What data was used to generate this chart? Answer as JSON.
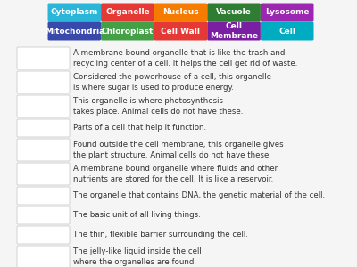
{
  "background_color": "#f5f5f5",
  "header_buttons": [
    {
      "label": "Cytoplasm",
      "color": "#29b6d8"
    },
    {
      "label": "Organelle",
      "color": "#e53935"
    },
    {
      "label": "Nucleus",
      "color": "#f57c00"
    },
    {
      "label": "Vacuole",
      "color": "#2e7d32"
    },
    {
      "label": "Lysosome",
      "color": "#9c27b0"
    }
  ],
  "header_buttons2": [
    {
      "label": "Mitochondria",
      "color": "#3949ab"
    },
    {
      "label": "Chloroplast",
      "color": "#43a047"
    },
    {
      "label": "Cell Wall",
      "color": "#e53935"
    },
    {
      "label": "Cell\nMembrane",
      "color": "#7b1fa2"
    },
    {
      "label": "Cell",
      "color": "#00acc1"
    }
  ],
  "clues": [
    "A membrane bound organelle that is like the trash and\nrecycling center of a cell. It helps the cell get rid of waste.",
    "Considered the powerhouse of a cell, this organelle\nis where sugar is used to produce energy.",
    "This organelle is where photosynthesis\ntakes place. Animal cells do not have these.",
    "Parts of a cell that help it function.",
    "Found outside the cell membrane, this organelle gives\nthe plant structure. Animal cells do not have these.",
    "A membrane bound organelle where fluids and other\nnutrients are stored for the cell. It is like a reservoir.",
    "The organelle that contains DNA, the genetic material of the cell.",
    "The basic unit of all living things.",
    "The thin, flexible barrier surrounding the cell.",
    "The jelly-like liquid inside the cell\nwhere the organelles are found."
  ],
  "line_counts": [
    2,
    2,
    2,
    1,
    2,
    2,
    1,
    1,
    1,
    2
  ],
  "box_color": "#ffffff",
  "box_border": "#cccccc",
  "text_color": "#333333",
  "button_text_color": "#ffffff",
  "button_fontsize": 6.5,
  "clue_fontsize": 6.2
}
